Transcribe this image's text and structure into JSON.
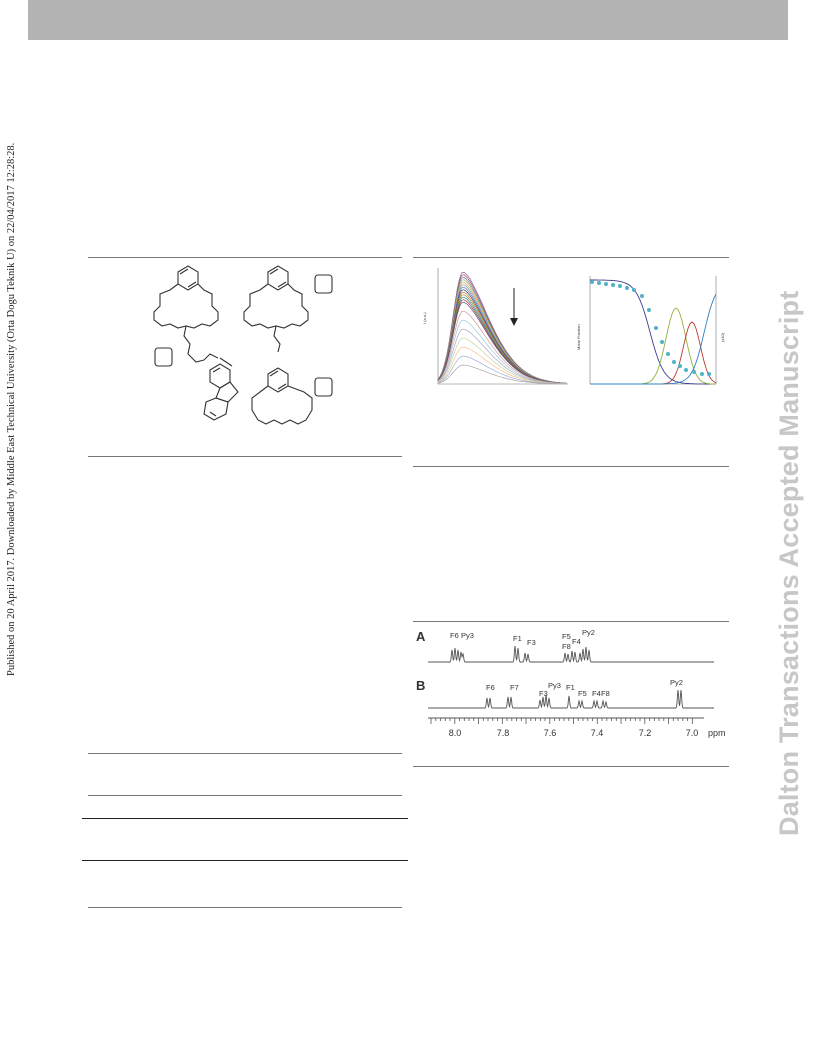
{
  "page": {
    "side_note": "Published on 20 April 2017. Downloaded by Middle East Technical University (Orta Dogu Teknik U) on 22/04/2017 12:28:28.",
    "watermark": "Dalton Transactions Accepted Manuscript"
  },
  "figure_structures": {
    "labels": [
      "",
      "",
      ""
    ]
  },
  "figure_spectra": {
    "left_axis_label": "I (a.u.)",
    "mid_axis_label": "Molar Fraction",
    "right_axis_label": "(x10)"
  },
  "figure_nmr": {
    "panel_a": "A",
    "panel_b": "B",
    "peaks_a": [
      "F6",
      "Py3",
      "F1",
      "F3",
      "F5",
      "F8",
      "F4",
      "Py2"
    ],
    "peaks_b": [
      "F6",
      "F7",
      "F3",
      "Py3",
      "F1",
      "F5",
      "F4",
      "F8",
      "Py2"
    ],
    "axis_ticks": [
      "8.0",
      "7.8",
      "7.6",
      "7.4",
      "7.2",
      "7.0"
    ],
    "axis_unit": "ppm"
  },
  "chart_data": {
    "type": "line",
    "title": "",
    "xlabel": "",
    "ylabel": "I (a.u.)",
    "x_ticks": [],
    "series_count": 20,
    "grid": false,
    "legend": "none"
  }
}
